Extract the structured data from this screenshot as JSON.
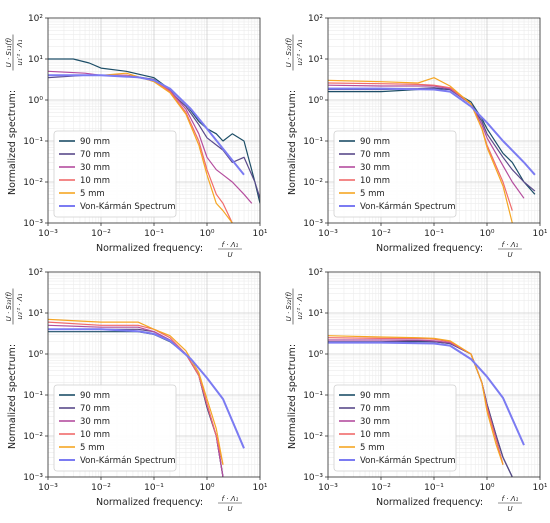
{
  "chart_data": [
    {
      "type": "line",
      "panel": "top-left",
      "xscale": "log",
      "yscale": "log",
      "xlim": [
        0.001,
        10
      ],
      "ylim": [
        0.001,
        100
      ],
      "grid": true,
      "legend_position": "lower-left",
      "xlabel": "Normalized frequency:",
      "xlabel_fraction": {
        "num": "f · Λ₁",
        "den": "U"
      },
      "ylabel": "Normalized spectrum:",
      "ylabel_fraction": {
        "num": "U · S₁₁(f)",
        "den": "u₁′² · Λ₁"
      },
      "x_tick_labels": [
        "10⁻³",
        "10⁻²",
        "10⁻¹",
        "10⁰",
        "10¹"
      ],
      "y_tick_labels": [
        "10⁻³",
        "10⁻²",
        "10⁻¹",
        "10⁰",
        "10¹",
        "10²"
      ],
      "series": [
        {
          "name": "90 mm",
          "x": [
            0.001,
            0.003,
            0.006,
            0.01,
            0.03,
            0.1,
            0.2,
            0.4,
            0.7,
            1.0,
            1.5,
            2.0,
            3.0,
            5.0,
            8.0,
            10.0
          ],
          "y": [
            10,
            10,
            8,
            6,
            5,
            3.5,
            1.8,
            0.8,
            0.3,
            0.2,
            0.15,
            0.1,
            0.15,
            0.1,
            0.01,
            0.003
          ]
        },
        {
          "name": "70 mm",
          "x": [
            0.001,
            0.005,
            0.01,
            0.03,
            0.1,
            0.2,
            0.4,
            0.7,
            1.0,
            1.5,
            2.0,
            3.0,
            5.0,
            8.0,
            10.0
          ],
          "y": [
            3.5,
            4,
            4,
            4,
            3.2,
            1.6,
            0.7,
            0.25,
            0.12,
            0.08,
            0.06,
            0.03,
            0.04,
            0.01,
            0.004
          ]
        },
        {
          "name": "30 mm",
          "x": [
            0.001,
            0.005,
            0.01,
            0.03,
            0.1,
            0.2,
            0.4,
            0.7,
            1.0,
            1.5,
            2.0,
            3.0,
            5.0,
            7.0
          ],
          "y": [
            5,
            4.5,
            4,
            4,
            3,
            1.7,
            0.6,
            0.15,
            0.04,
            0.02,
            0.015,
            0.01,
            0.005,
            0.003
          ]
        },
        {
          "name": "10 mm",
          "x": [
            0.001,
            0.005,
            0.01,
            0.03,
            0.1,
            0.2,
            0.4,
            0.7,
            1.0,
            1.5,
            2.0,
            3.0
          ],
          "y": [
            4,
            4,
            4,
            4,
            3,
            1.6,
            0.5,
            0.1,
            0.02,
            0.005,
            0.003,
            0.001
          ]
        },
        {
          "name": "5 mm",
          "x": [
            0.001,
            0.005,
            0.01,
            0.03,
            0.1,
            0.2,
            0.4,
            0.7,
            1.0,
            1.5,
            2.0,
            3.0
          ],
          "y": [
            4,
            4,
            4,
            4.5,
            2.8,
            1.5,
            0.45,
            0.08,
            0.015,
            0.003,
            0.002,
            0.001
          ]
        },
        {
          "name": "Von-Kármán Spectrum",
          "x": [
            0.001,
            0.01,
            0.05,
            0.1,
            0.2,
            0.5,
            1.0,
            2.0,
            5.0
          ],
          "y": [
            4,
            4,
            3.6,
            3,
            1.9,
            0.6,
            0.2,
            0.065,
            0.015
          ]
        }
      ]
    },
    {
      "type": "line",
      "panel": "top-right",
      "xscale": "log",
      "yscale": "log",
      "xlim": [
        0.001,
        10
      ],
      "ylim": [
        0.001,
        100
      ],
      "grid": true,
      "legend_position": "lower-left",
      "xlabel": "Normalized frequency:",
      "xlabel_fraction": {
        "num": "f · Λ₁",
        "den": "U"
      },
      "ylabel": "Normalized spectrum:",
      "ylabel_fraction": {
        "num": "U · S₂₂(f)",
        "den": "u₂′² · Λ₁"
      },
      "x_tick_labels": [
        "10⁻³",
        "10⁻²",
        "10⁻¹",
        "10⁰",
        "10¹"
      ],
      "y_tick_labels": [
        "10⁻³",
        "10⁻²",
        "10⁻¹",
        "10⁰",
        "10¹",
        "10²"
      ],
      "series": [
        {
          "name": "90 mm",
          "x": [
            0.001,
            0.01,
            0.05,
            0.1,
            0.2,
            0.5,
            0.8,
            1.0,
            2.0,
            3.0,
            5.0,
            8.0
          ],
          "y": [
            1.6,
            1.6,
            1.8,
            1.9,
            1.8,
            0.9,
            0.35,
            0.2,
            0.05,
            0.03,
            0.01,
            0.005
          ]
        },
        {
          "name": "70 mm",
          "x": [
            0.001,
            0.01,
            0.05,
            0.1,
            0.2,
            0.5,
            0.8,
            1.0,
            2.0,
            3.0,
            5.0,
            8.0
          ],
          "y": [
            1.8,
            1.8,
            1.9,
            2.0,
            1.8,
            0.8,
            0.3,
            0.15,
            0.04,
            0.02,
            0.01,
            0.006
          ]
        },
        {
          "name": "30 mm",
          "x": [
            0.001,
            0.01,
            0.05,
            0.1,
            0.2,
            0.5,
            0.8,
            1.0,
            2.0,
            3.0,
            5.0
          ],
          "y": [
            2.3,
            2.2,
            2.2,
            2.2,
            1.9,
            0.8,
            0.25,
            0.12,
            0.025,
            0.01,
            0.004
          ]
        },
        {
          "name": "10 mm",
          "x": [
            0.001,
            0.01,
            0.05,
            0.1,
            0.2,
            0.5,
            0.8,
            1.0,
            2.0,
            3.0
          ],
          "y": [
            2.6,
            2.5,
            2.4,
            2.3,
            2.0,
            0.8,
            0.2,
            0.08,
            0.01,
            0.002
          ]
        },
        {
          "name": "5 mm",
          "x": [
            0.001,
            0.01,
            0.05,
            0.1,
            0.2,
            0.5,
            0.8,
            1.0,
            2.0,
            3.0
          ],
          "y": [
            3.0,
            2.8,
            2.6,
            3.5,
            2.2,
            0.8,
            0.2,
            0.07,
            0.008,
            0.001
          ]
        },
        {
          "name": "Von-Kármán Spectrum",
          "x": [
            0.001,
            0.01,
            0.1,
            0.2,
            0.5,
            1.0,
            2.0,
            5.0,
            8.0
          ],
          "y": [
            1.9,
            1.9,
            1.8,
            1.6,
            0.7,
            0.28,
            0.1,
            0.03,
            0.015
          ]
        }
      ]
    },
    {
      "type": "line",
      "panel": "bottom-left",
      "xscale": "log",
      "yscale": "log",
      "xlim": [
        0.001,
        10
      ],
      "ylim": [
        0.001,
        100
      ],
      "grid": true,
      "legend_position": "lower-left",
      "xlabel": "Normalized frequency:",
      "xlabel_fraction": {
        "num": "f · Λ₁",
        "den": "U"
      },
      "ylabel": "Normalized spectrum:",
      "ylabel_fraction": {
        "num": "U · S₃₃(f)",
        "den": "u₃′² · Λ₁"
      },
      "x_tick_labels": [
        "10⁻³",
        "10⁻²",
        "10⁻¹",
        "10⁰",
        "10¹"
      ],
      "y_tick_labels": [
        "10⁻³",
        "10⁻²",
        "10⁻¹",
        "10⁰",
        "10¹",
        "10²"
      ],
      "series": [
        {
          "name": "90 mm",
          "x": [
            0.001,
            0.01,
            0.05,
            0.1,
            0.2,
            0.4,
            0.7,
            1.0,
            1.5,
            2.0
          ],
          "y": [
            3.5,
            3.5,
            3.5,
            3,
            2,
            1.0,
            0.3,
            0.05,
            0.01,
            0.001
          ]
        },
        {
          "name": "70 mm",
          "x": [
            0.001,
            0.01,
            0.05,
            0.1,
            0.2,
            0.4,
            0.7,
            1.0,
            1.5,
            2.0
          ],
          "y": [
            4,
            4,
            4,
            3.5,
            2.2,
            1.0,
            0.3,
            0.05,
            0.01,
            0.001
          ]
        },
        {
          "name": "30 mm",
          "x": [
            0.001,
            0.01,
            0.05,
            0.1,
            0.2,
            0.4,
            0.7,
            1.0,
            1.5,
            2.0
          ],
          "y": [
            5,
            4.5,
            4.5,
            3.5,
            2.2,
            1.0,
            0.3,
            0.06,
            0.01,
            0.001
          ]
        },
        {
          "name": "10 mm",
          "x": [
            0.001,
            0.01,
            0.05,
            0.1,
            0.2,
            0.4,
            0.7,
            1.0,
            1.5,
            2.0
          ],
          "y": [
            6,
            5,
            5,
            4,
            2.5,
            1.0,
            0.3,
            0.06,
            0.01,
            0.002
          ]
        },
        {
          "name": "5 mm",
          "x": [
            0.001,
            0.01,
            0.05,
            0.1,
            0.2,
            0.4,
            0.7,
            1.0,
            1.5,
            2.0
          ],
          "y": [
            7,
            6,
            6,
            4,
            2.8,
            1.2,
            0.35,
            0.08,
            0.015,
            0.002
          ]
        },
        {
          "name": "Von-Kármán Spectrum",
          "x": [
            0.001,
            0.01,
            0.05,
            0.1,
            0.2,
            0.5,
            1.0,
            2.0,
            5.0
          ],
          "y": [
            4,
            4,
            3.6,
            3.1,
            2.1,
            0.75,
            0.26,
            0.08,
            0.005
          ]
        }
      ]
    },
    {
      "type": "line",
      "panel": "bottom-right",
      "xscale": "log",
      "yscale": "log",
      "xlim": [
        0.001,
        10
      ],
      "ylim": [
        0.001,
        100
      ],
      "grid": true,
      "legend_position": "lower-left",
      "xlabel": "Normalized frequency:",
      "xlabel_fraction": {
        "num": "f · Λ₁",
        "den": "U"
      },
      "ylabel": "Normalized spectrum:",
      "ylabel_fraction": {
        "num": "U · S₂₂(f)",
        "den": "u₂′² · Λ₁"
      },
      "x_tick_labels": [
        "10⁻³",
        "10⁻²",
        "10⁻¹",
        "10⁰",
        "10¹"
      ],
      "y_tick_labels": [
        "10⁻³",
        "10⁻²",
        "10⁻¹",
        "10⁰",
        "10¹",
        "10²"
      ],
      "series": [
        {
          "name": "90 mm",
          "x": [
            0.001,
            0.01,
            0.05,
            0.1,
            0.2,
            0.5,
            0.8,
            1.0,
            1.5,
            2.0,
            3.0
          ],
          "y": [
            1.9,
            1.9,
            2.0,
            2.0,
            1.8,
            1.0,
            0.2,
            0.06,
            0.01,
            0.003,
            0.001
          ]
        },
        {
          "name": "70 mm",
          "x": [
            0.001,
            0.01,
            0.05,
            0.1,
            0.2,
            0.5,
            0.8,
            1.0,
            1.5,
            2.0,
            3.0
          ],
          "y": [
            2.0,
            2.0,
            2.1,
            2.0,
            1.8,
            1.0,
            0.2,
            0.06,
            0.01,
            0.003,
            0.001
          ]
        },
        {
          "name": "30 mm",
          "x": [
            0.001,
            0.01,
            0.05,
            0.1,
            0.2,
            0.5,
            0.8,
            1.0,
            1.5,
            2.0
          ],
          "y": [
            2.2,
            2.2,
            2.2,
            2.1,
            1.9,
            1.0,
            0.2,
            0.05,
            0.008,
            0.002
          ]
        },
        {
          "name": "10 mm",
          "x": [
            0.001,
            0.01,
            0.05,
            0.1,
            0.2,
            0.5,
            0.8,
            1.0,
            1.5,
            2.0
          ],
          "y": [
            2.5,
            2.4,
            2.4,
            2.3,
            2.0,
            1.0,
            0.2,
            0.05,
            0.008,
            0.002
          ]
        },
        {
          "name": "5 mm",
          "x": [
            0.001,
            0.01,
            0.05,
            0.1,
            0.2,
            0.5,
            0.8,
            1.0,
            1.5,
            2.0
          ],
          "y": [
            2.8,
            2.6,
            2.5,
            2.4,
            2.1,
            1.0,
            0.2,
            0.04,
            0.006,
            0.002
          ]
        },
        {
          "name": "Von-Kármán Spectrum",
          "x": [
            0.001,
            0.01,
            0.1,
            0.2,
            0.5,
            1.0,
            2.0,
            5.0
          ],
          "y": [
            1.9,
            1.9,
            1.8,
            1.6,
            0.75,
            0.28,
            0.085,
            0.006
          ]
        }
      ]
    }
  ],
  "series_colors": {
    "90 mm": "#1d4e67",
    "70 mm": "#5a4a8a",
    "30 mm": "#b44d9e",
    "10 mm": "#f06b6b",
    "5 mm": "#f5a623",
    "Von-Kármán Spectrum": "#7b7bf2"
  }
}
